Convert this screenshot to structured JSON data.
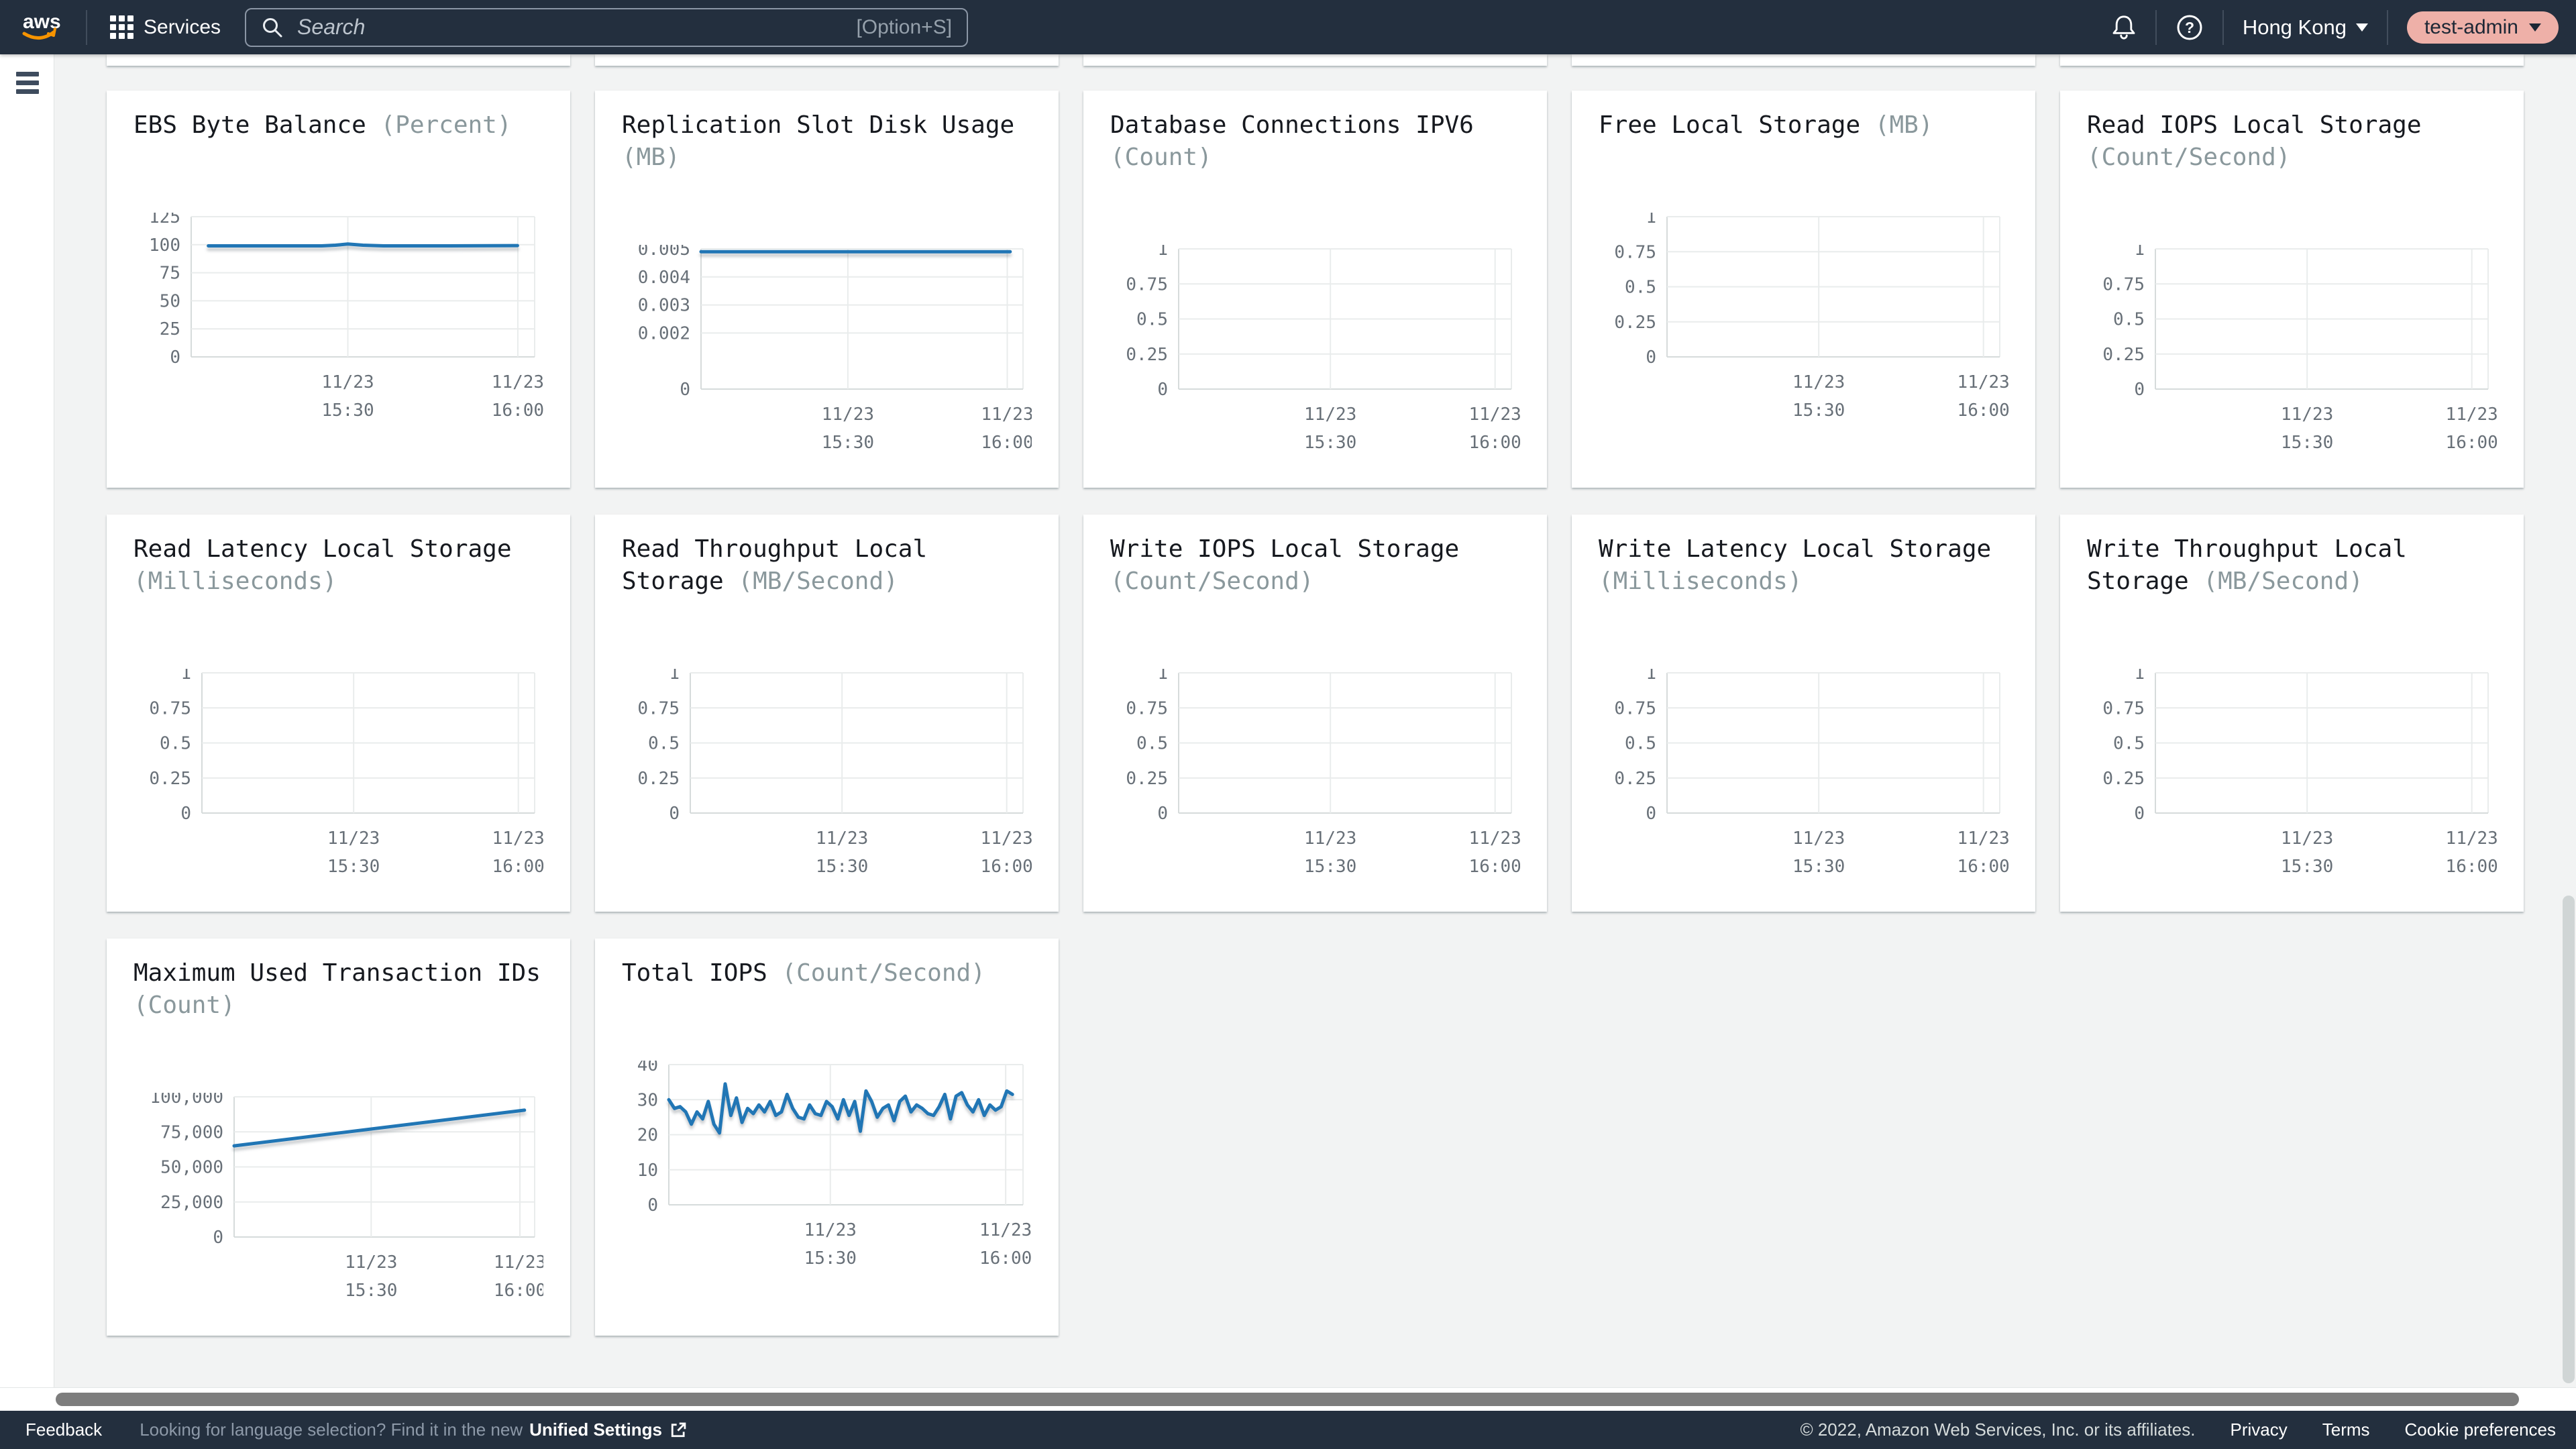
{
  "topnav": {
    "logo": "aws",
    "services_label": "Services",
    "search_placeholder": "Search",
    "search_shortcut": "[Option+S]",
    "region": "Hong Kong",
    "account": "test-admin"
  },
  "footer": {
    "feedback": "Feedback",
    "language_hint": "Looking for language selection? Find it in the new",
    "unified_settings": "Unified Settings",
    "copyright": "© 2022, Amazon Web Services, Inc. or its affiliates.",
    "privacy": "Privacy",
    "terms": "Terms",
    "cookie_preferences": "Cookie preferences"
  },
  "colors": {
    "nav_bg": "#232f3e",
    "page_bg": "#f2f3f3",
    "line_blue": "#2176b5",
    "account_pill": "#eeb0a8",
    "aws_orange": "#f79400"
  },
  "chart_data": [
    {
      "type": "line",
      "title": "EBS Byte Balance",
      "unit": "(Percent)",
      "ymax": 125,
      "y_ticks": [
        {
          "label": "125",
          "pos": 0
        },
        {
          "label": "100",
          "pos": 0.2
        },
        {
          "label": "75",
          "pos": 0.4
        },
        {
          "label": "50",
          "pos": 0.6
        },
        {
          "label": "25",
          "pos": 0.8
        },
        {
          "label": "0",
          "pos": 1
        }
      ],
      "x_ticks": [
        {
          "date": "11/23",
          "time": "15:30",
          "pos": 0.456
        },
        {
          "date": "11/23",
          "time": "16:00",
          "pos": 0.951
        }
      ],
      "series": {
        "x": [
          0.05,
          0.25,
          0.38,
          0.42,
          0.456,
          0.5,
          0.56,
          0.75,
          0.95
        ],
        "y": [
          99,
          99,
          99,
          99.6,
          100.6,
          99.6,
          99,
          99,
          99.2
        ]
      }
    },
    {
      "type": "line",
      "title": "Replication Slot Disk Usage",
      "unit": "(MB)",
      "ymax": 0.005,
      "y_ticks": [
        {
          "label": "0.005",
          "pos": 0
        },
        {
          "label": "0.004",
          "pos": 0.2
        },
        {
          "label": "0.003",
          "pos": 0.4
        },
        {
          "label": "0.002",
          "pos": 0.6
        },
        {
          "label": "0",
          "pos": 1
        }
      ],
      "x_ticks": [
        {
          "date": "11/23",
          "time": "15:30",
          "pos": 0.456
        },
        {
          "date": "11/23",
          "time": "16:00",
          "pos": 0.951
        }
      ],
      "series": {
        "x": [
          0,
          0.96
        ],
        "y": [
          0.0049,
          0.0049
        ]
      }
    },
    {
      "type": "line",
      "title": "Database Connections IPV6",
      "unit": "(Count)",
      "ymax": 1,
      "y_ticks": [
        {
          "label": "1",
          "pos": 0
        },
        {
          "label": "0.75",
          "pos": 0.25
        },
        {
          "label": "0.5",
          "pos": 0.5
        },
        {
          "label": "0.25",
          "pos": 0.75
        },
        {
          "label": "0",
          "pos": 1
        }
      ],
      "x_ticks": [
        {
          "date": "11/23",
          "time": "15:30",
          "pos": 0.456
        },
        {
          "date": "11/23",
          "time": "16:00",
          "pos": 0.951
        }
      ],
      "series": null
    },
    {
      "type": "line",
      "title": "Free Local Storage",
      "unit": "(MB)",
      "ymax": 1,
      "y_ticks": [
        {
          "label": "1",
          "pos": 0
        },
        {
          "label": "0.75",
          "pos": 0.25
        },
        {
          "label": "0.5",
          "pos": 0.5
        },
        {
          "label": "0.25",
          "pos": 0.75
        },
        {
          "label": "0",
          "pos": 1
        }
      ],
      "x_ticks": [
        {
          "date": "11/23",
          "time": "15:30",
          "pos": 0.456
        },
        {
          "date": "11/23",
          "time": "16:00",
          "pos": 0.951
        }
      ],
      "series": null
    },
    {
      "type": "line",
      "title": "Read IOPS Local Storage",
      "unit": "(Count/Second)",
      "ymax": 1,
      "y_ticks": [
        {
          "label": "1",
          "pos": 0
        },
        {
          "label": "0.75",
          "pos": 0.25
        },
        {
          "label": "0.5",
          "pos": 0.5
        },
        {
          "label": "0.25",
          "pos": 0.75
        },
        {
          "label": "0",
          "pos": 1
        }
      ],
      "x_ticks": [
        {
          "date": "11/23",
          "time": "15:30",
          "pos": 0.456
        },
        {
          "date": "11/23",
          "time": "16:00",
          "pos": 0.951
        }
      ],
      "series": null
    },
    {
      "type": "line",
      "title": "Read Latency Local Storage",
      "unit": "(Milliseconds)",
      "ymax": 1,
      "y_ticks": [
        {
          "label": "1",
          "pos": 0
        },
        {
          "label": "0.75",
          "pos": 0.25
        },
        {
          "label": "0.5",
          "pos": 0.5
        },
        {
          "label": "0.25",
          "pos": 0.75
        },
        {
          "label": "0",
          "pos": 1
        }
      ],
      "x_ticks": [
        {
          "date": "11/23",
          "time": "15:30",
          "pos": 0.456
        },
        {
          "date": "11/23",
          "time": "16:00",
          "pos": 0.951
        }
      ],
      "series": null
    },
    {
      "type": "line",
      "title": "Read Throughput Local Storage",
      "unit": "(MB/Second)",
      "ymax": 1,
      "y_ticks": [
        {
          "label": "1",
          "pos": 0
        },
        {
          "label": "0.75",
          "pos": 0.25
        },
        {
          "label": "0.5",
          "pos": 0.5
        },
        {
          "label": "0.25",
          "pos": 0.75
        },
        {
          "label": "0",
          "pos": 1
        }
      ],
      "x_ticks": [
        {
          "date": "11/23",
          "time": "15:30",
          "pos": 0.456
        },
        {
          "date": "11/23",
          "time": "16:00",
          "pos": 0.951
        }
      ],
      "series": null
    },
    {
      "type": "line",
      "title": "Write IOPS Local Storage",
      "unit": "(Count/Second)",
      "ymax": 1,
      "y_ticks": [
        {
          "label": "1",
          "pos": 0
        },
        {
          "label": "0.75",
          "pos": 0.25
        },
        {
          "label": "0.5",
          "pos": 0.5
        },
        {
          "label": "0.25",
          "pos": 0.75
        },
        {
          "label": "0",
          "pos": 1
        }
      ],
      "x_ticks": [
        {
          "date": "11/23",
          "time": "15:30",
          "pos": 0.456
        },
        {
          "date": "11/23",
          "time": "16:00",
          "pos": 0.951
        }
      ],
      "series": null
    },
    {
      "type": "line",
      "title": "Write Latency Local Storage",
      "unit": "(Milliseconds)",
      "ymax": 1,
      "y_ticks": [
        {
          "label": "1",
          "pos": 0
        },
        {
          "label": "0.75",
          "pos": 0.25
        },
        {
          "label": "0.5",
          "pos": 0.5
        },
        {
          "label": "0.25",
          "pos": 0.75
        },
        {
          "label": "0",
          "pos": 1
        }
      ],
      "x_ticks": [
        {
          "date": "11/23",
          "time": "15:30",
          "pos": 0.456
        },
        {
          "date": "11/23",
          "time": "16:00",
          "pos": 0.951
        }
      ],
      "series": null
    },
    {
      "type": "line",
      "title": "Write Throughput Local Storage",
      "unit": "(MB/Second)",
      "ymax": 1,
      "y_ticks": [
        {
          "label": "1",
          "pos": 0
        },
        {
          "label": "0.75",
          "pos": 0.25
        },
        {
          "label": "0.5",
          "pos": 0.5
        },
        {
          "label": "0.25",
          "pos": 0.75
        },
        {
          "label": "0",
          "pos": 1
        }
      ],
      "x_ticks": [
        {
          "date": "11/23",
          "time": "15:30",
          "pos": 0.456
        },
        {
          "date": "11/23",
          "time": "16:00",
          "pos": 0.951
        }
      ],
      "series": null
    },
    {
      "type": "line",
      "title": "Maximum Used Transaction IDs",
      "unit": "(Count)",
      "ymax": 100000,
      "y_ticks": [
        {
          "label": "100,000",
          "pos": 0
        },
        {
          "label": "75,000",
          "pos": 0.25
        },
        {
          "label": "50,000",
          "pos": 0.5
        },
        {
          "label": "25,000",
          "pos": 0.75
        },
        {
          "label": "0",
          "pos": 1
        }
      ],
      "x_ticks": [
        {
          "date": "11/23",
          "time": "15:30",
          "pos": 0.456
        },
        {
          "date": "11/23",
          "time": "16:00",
          "pos": 0.951
        }
      ],
      "series": {
        "x": [
          0,
          0.966
        ],
        "y": [
          65000,
          90500
        ]
      }
    },
    {
      "type": "line",
      "title": "Total IOPS",
      "unit": "(Count/Second)",
      "ymax": 40,
      "y_ticks": [
        {
          "label": "40",
          "pos": 0
        },
        {
          "label": "30",
          "pos": 0.25
        },
        {
          "label": "20",
          "pos": 0.5
        },
        {
          "label": "10",
          "pos": 0.75
        },
        {
          "label": "0",
          "pos": 1
        }
      ],
      "x_ticks": [
        {
          "date": "11/23",
          "time": "15:30",
          "pos": 0.456
        },
        {
          "date": "11/23",
          "time": "16:00",
          "pos": 0.951
        }
      ],
      "series": {
        "xspan": [
          0,
          0.97
        ],
        "y": [
          30,
          27.5,
          28,
          26.5,
          23,
          26.5,
          24.5,
          29.5,
          23,
          20.5,
          34.5,
          25.5,
          30.5,
          23.5,
          27.5,
          26,
          28.5,
          26.5,
          29.5,
          25.5,
          26.5,
          31.5,
          27.5,
          25,
          24.5,
          28.5,
          26,
          25.5,
          29.5,
          28,
          24.5,
          30,
          25.5,
          29.5,
          21,
          32.5,
          29.5,
          25,
          27.5,
          28.5,
          24,
          29.5,
          31,
          26.5,
          28.5,
          27.5,
          26,
          25.5,
          28,
          31.5,
          24.5,
          31,
          32,
          28.5,
          26.5,
          30,
          25.5,
          28.5,
          27,
          28,
          32.5,
          31.5
        ]
      }
    }
  ]
}
